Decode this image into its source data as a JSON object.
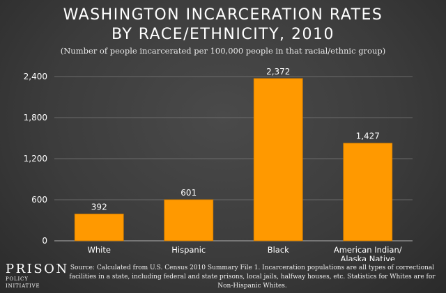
{
  "title_lines": [
    "WASHINGTON INCARCERATION RATES",
    "BY RACE/ETHNICITY, 2010"
  ],
  "subtitle": "(Number of people incarcerated per 100,000 people in that racial/ethnic group)",
  "source": "Source: Calculated from U.S. Census 2010 Summary File 1. Incarceration populations are all types of correctional facilities in a state, including federal and state prisons, local jails, halfway houses, etc. Statistics for Whites are for Non-Hispanic Whites.",
  "logo": {
    "top": "PRISON",
    "bottom": "POLICY INITIATIVE"
  },
  "colors": {
    "bar": "#ff9900",
    "bar_stroke": "#cc7a00",
    "grid": "#7a7a7a",
    "text": "#ffffff"
  },
  "chart_data": {
    "type": "bar",
    "title": "WASHINGTON INCARCERATION RATES BY RACE/ETHNICITY, 2010",
    "subtitle": "(Number of people incarcerated per 100,000 people in that racial/ethnic group)",
    "categories": [
      [
        "White"
      ],
      [
        "Hispanic"
      ],
      [
        "Black"
      ],
      [
        "American Indian/",
        "Alaska Native"
      ]
    ],
    "values": [
      392,
      601,
      2372,
      1427
    ],
    "value_labels": [
      "392",
      "601",
      "2,372",
      "1,427"
    ],
    "ylim": [
      0,
      2400
    ],
    "yticks": [
      0,
      600,
      1200,
      1800,
      2400
    ],
    "ytick_labels": [
      "0",
      "600",
      "1,200",
      "1,800",
      "2,400"
    ],
    "xlabel": "",
    "ylabel": "",
    "grid": true
  }
}
